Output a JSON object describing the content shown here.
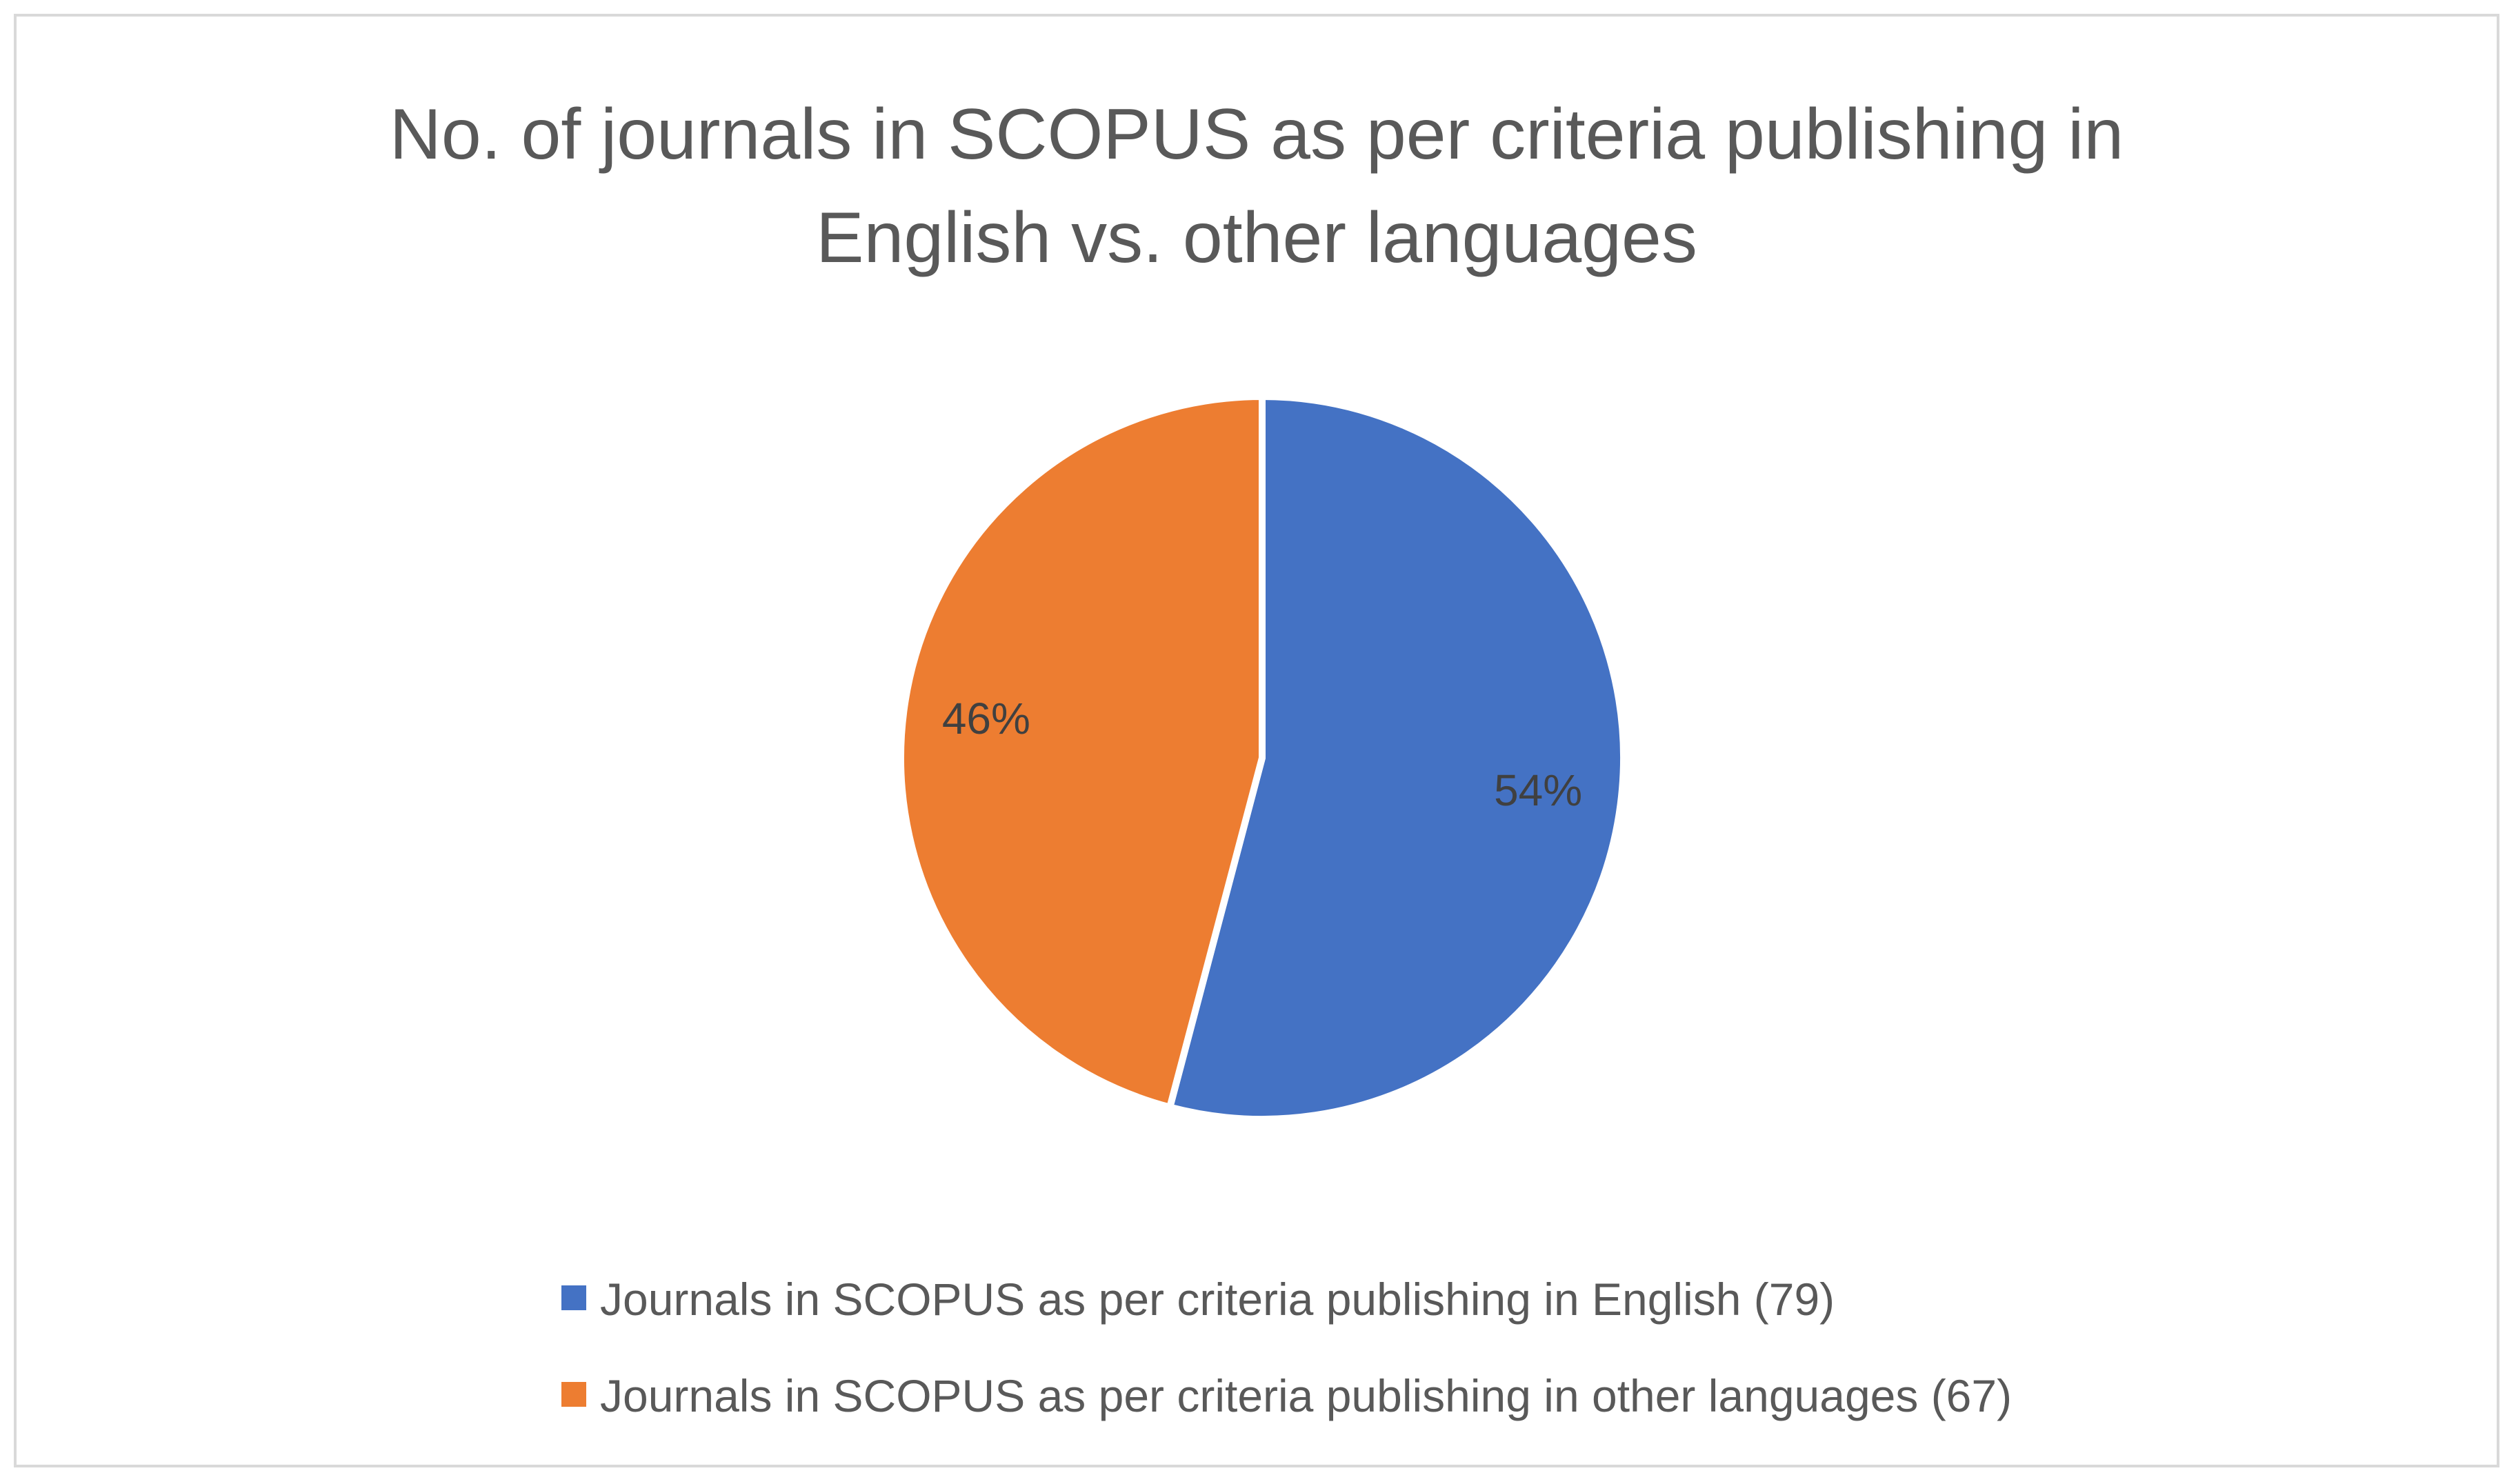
{
  "chart_data": {
    "type": "pie",
    "title_lines": [
      "No. of journals in SCOPUS as per criteria publishing in",
      "English vs. other languages"
    ],
    "slices": [
      {
        "name": "Journals in SCOPUS as per criteria publishing in English (79)",
        "value": 79,
        "percent_label": "54%",
        "color": "#4472C4"
      },
      {
        "name": "Journals in SCOPUS as per criteria publishing in other languages (67)",
        "value": 67,
        "percent_label": "46%",
        "color": "#ED7D31"
      }
    ],
    "legend_position": "bottom"
  }
}
